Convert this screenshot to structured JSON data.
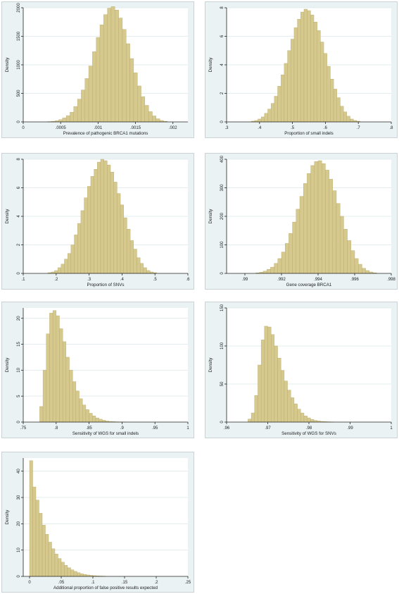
{
  "figure": {
    "bar_color": "#d6c98e",
    "bar_edge_color": "#b8a86a",
    "plot_bg": "#ffffff",
    "panel_bg": "#eaf2f3",
    "grid_color": "#e3ecee"
  },
  "chart_data": [
    {
      "type": "bar",
      "xlabel": "Prevalence of pathogenic BRCA1 mutations",
      "ylabel": "Density",
      "xlim": [
        0,
        0.0022
      ],
      "ylim": [
        0,
        2000
      ],
      "xticks": [
        0,
        0.0005,
        0.001,
        0.0015,
        0.002
      ],
      "xtick_labels": [
        "0",
        ".0005",
        ".001",
        ".0015",
        ".002"
      ],
      "yticks": [
        0,
        500,
        1000,
        1500,
        2000
      ],
      "ytick_labels": [
        "0",
        "500",
        "1000",
        "1500",
        "2000"
      ],
      "bin_width": 5e-05,
      "x": [
        0.00035,
        0.0004,
        0.00045,
        0.0005,
        0.00055,
        0.0006,
        0.00065,
        0.0007,
        0.00075,
        0.0008,
        0.00085,
        0.0009,
        0.00095,
        0.001,
        0.00105,
        0.0011,
        0.00115,
        0.0012,
        0.00125,
        0.0013,
        0.00135,
        0.0014,
        0.00145,
        0.0015,
        0.00155,
        0.0016,
        0.00165,
        0.0017,
        0.00175,
        0.0018,
        0.00185,
        0.0019
      ],
      "values": [
        5,
        10,
        20,
        40,
        70,
        110,
        170,
        270,
        400,
        560,
        760,
        980,
        1230,
        1480,
        1700,
        1880,
        1990,
        2020,
        1960,
        1820,
        1620,
        1370,
        1110,
        860,
        630,
        440,
        290,
        180,
        105,
        55,
        25,
        10
      ]
    },
    {
      "type": "bar",
      "xlabel": "Proportion of small indels",
      "ylabel": "Density",
      "xlim": [
        0.3,
        0.8
      ],
      "ylim": [
        0,
        8
      ],
      "xticks": [
        0.3,
        0.4,
        0.5,
        0.6,
        0.7,
        0.8
      ],
      "xtick_labels": [
        ".3",
        ".4",
        ".5",
        ".6",
        ".7",
        ".8"
      ],
      "yticks": [
        0,
        2,
        4,
        6,
        8
      ],
      "ytick_labels": [
        "0",
        "2",
        "4",
        "6",
        "8"
      ],
      "bin_width": 0.01,
      "x": [
        0.38,
        0.39,
        0.4,
        0.41,
        0.42,
        0.43,
        0.44,
        0.45,
        0.46,
        0.47,
        0.48,
        0.49,
        0.5,
        0.51,
        0.52,
        0.53,
        0.54,
        0.55,
        0.56,
        0.57,
        0.58,
        0.59,
        0.6,
        0.61,
        0.62,
        0.63,
        0.64,
        0.65,
        0.66,
        0.67,
        0.68,
        0.69,
        0.7
      ],
      "values": [
        0.05,
        0.1,
        0.2,
        0.35,
        0.6,
        0.9,
        1.3,
        1.8,
        2.5,
        3.3,
        4.1,
        5.0,
        5.8,
        6.6,
        7.2,
        7.7,
        7.9,
        7.8,
        7.5,
        7.0,
        6.4,
        5.6,
        4.8,
        3.9,
        3.0,
        2.3,
        1.7,
        1.1,
        0.7,
        0.4,
        0.2,
        0.1,
        0.05
      ]
    },
    {
      "type": "bar",
      "xlabel": "Proportion of SNVs",
      "ylabel": "Density",
      "xlim": [
        0.1,
        0.6
      ],
      "ylim": [
        0,
        8
      ],
      "xticks": [
        0.1,
        0.2,
        0.3,
        0.4,
        0.5,
        0.6
      ],
      "xtick_labels": [
        ".1",
        ".2",
        ".3",
        ".4",
        ".5",
        ".6"
      ],
      "yticks": [
        0,
        2,
        4,
        6,
        8
      ],
      "ytick_labels": [
        "0",
        "2",
        "4",
        "6",
        "8"
      ],
      "bin_width": 0.01,
      "x": [
        0.18,
        0.19,
        0.2,
        0.21,
        0.22,
        0.23,
        0.24,
        0.25,
        0.26,
        0.27,
        0.28,
        0.29,
        0.3,
        0.31,
        0.32,
        0.33,
        0.34,
        0.35,
        0.36,
        0.37,
        0.38,
        0.39,
        0.4,
        0.41,
        0.42,
        0.43,
        0.44,
        0.45,
        0.46,
        0.47,
        0.48,
        0.49,
        0.5
      ],
      "values": [
        0.05,
        0.1,
        0.2,
        0.4,
        0.65,
        1.0,
        1.4,
        2.0,
        2.7,
        3.5,
        4.4,
        5.3,
        6.1,
        6.8,
        7.3,
        7.8,
        8.0,
        7.9,
        7.6,
        7.1,
        6.4,
        5.6,
        4.8,
        3.9,
        3.1,
        2.3,
        1.7,
        1.1,
        0.7,
        0.4,
        0.2,
        0.1,
        0.05
      ]
    },
    {
      "type": "bar",
      "xlabel": "Gene coverage BRCA1",
      "ylabel": "Density",
      "xlim": [
        0.989,
        0.998
      ],
      "ylim": [
        0,
        400
      ],
      "xticks": [
        0.99,
        0.992,
        0.994,
        0.996,
        0.998
      ],
      "xtick_labels": [
        ".99",
        ".992",
        ".994",
        ".996",
        ".998"
      ],
      "yticks": [
        0,
        100,
        200,
        300,
        400
      ],
      "ytick_labels": [
        "0",
        "100",
        "200",
        "300",
        "400"
      ],
      "bin_width": 0.0002,
      "x": [
        0.9907,
        0.9909,
        0.9911,
        0.9913,
        0.9915,
        0.9917,
        0.9919,
        0.9921,
        0.9923,
        0.9925,
        0.9927,
        0.9929,
        0.9931,
        0.9933,
        0.9935,
        0.9937,
        0.9939,
        0.9941,
        0.9943,
        0.9945,
        0.9947,
        0.9949,
        0.9951,
        0.9953,
        0.9955,
        0.9957,
        0.9959,
        0.9961,
        0.9963,
        0.9965,
        0.9967,
        0.9969,
        0.9971
      ],
      "values": [
        2,
        4,
        8,
        14,
        22,
        35,
        52,
        75,
        105,
        140,
        180,
        225,
        270,
        315,
        350,
        378,
        392,
        395,
        385,
        362,
        330,
        290,
        245,
        200,
        155,
        115,
        80,
        52,
        32,
        18,
        10,
        5,
        2
      ]
    },
    {
      "type": "bar",
      "xlabel": "Sensitivity of WGS for small indels",
      "ylabel": "Density",
      "xlim": [
        0.75,
        1.0
      ],
      "ylim": [
        0,
        22
      ],
      "xticks": [
        0.75,
        0.8,
        0.85,
        0.9,
        0.95,
        1.0
      ],
      "xtick_labels": [
        ".75",
        ".8",
        ".85",
        ".9",
        ".95",
        "1"
      ],
      "yticks": [
        0,
        5,
        10,
        15,
        20
      ],
      "ytick_labels": [
        "0",
        "5",
        "10",
        "15",
        "20"
      ],
      "bin_width": 0.005,
      "x": [
        0.7775,
        0.7825,
        0.7875,
        0.7925,
        0.7975,
        0.8025,
        0.8075,
        0.8125,
        0.8175,
        0.8225,
        0.8275,
        0.8325,
        0.8375,
        0.8425,
        0.8475,
        0.8525,
        0.8575,
        0.8625,
        0.8675,
        0.8725,
        0.8775,
        0.8825,
        0.8875,
        0.8925,
        0.8975,
        0.9025
      ],
      "values": [
        3,
        10,
        17,
        21,
        21.5,
        20.5,
        18,
        15.5,
        12.5,
        10,
        7.8,
        6,
        4.5,
        3.3,
        2.4,
        1.7,
        1.2,
        0.8,
        0.55,
        0.35,
        0.2,
        0.12,
        0.08,
        0.05,
        0.03,
        0.02
      ]
    },
    {
      "type": "bar",
      "xlabel": "Sensitivity of WGS for SNVs",
      "ylabel": "Density",
      "xlim": [
        0.96,
        1.0
      ],
      "ylim": [
        0,
        150
      ],
      "xticks": [
        0.96,
        0.97,
        0.98,
        0.99,
        1.0
      ],
      "xtick_labels": [
        ".96",
        ".97",
        ".98",
        ".99",
        "1"
      ],
      "yticks": [
        0,
        50,
        100,
        150
      ],
      "ytick_labels": [
        "0",
        "50",
        "100",
        "150"
      ],
      "bin_width": 0.0008,
      "x": [
        0.9656,
        0.9664,
        0.9672,
        0.968,
        0.9688,
        0.9696,
        0.9704,
        0.9712,
        0.972,
        0.9728,
        0.9736,
        0.9744,
        0.9752,
        0.976,
        0.9768,
        0.9776,
        0.9784,
        0.9792,
        0.98,
        0.9808,
        0.9816,
        0.9824,
        0.9832,
        0.984,
        0.9848,
        0.9856
      ],
      "values": [
        4,
        12,
        35,
        75,
        108,
        126,
        125,
        115,
        100,
        84,
        68,
        54,
        42,
        32,
        24,
        17,
        12,
        8,
        5.5,
        3.5,
        2.2,
        1.4,
        0.9,
        0.6,
        0.4,
        0.2
      ]
    },
    {
      "type": "bar",
      "xlabel": "Additional proportion of false positive results expected",
      "ylabel": "Density",
      "xlim": [
        -0.01,
        0.25
      ],
      "ylim": [
        0,
        45
      ],
      "xticks": [
        0,
        0.05,
        0.1,
        0.15,
        0.2,
        0.25
      ],
      "xtick_labels": [
        "0",
        ".05",
        ".1",
        ".15",
        ".2",
        ".25"
      ],
      "yticks": [
        0,
        10,
        20,
        30,
        40
      ],
      "ytick_labels": [
        "0",
        "10",
        "20",
        "30",
        "40"
      ],
      "bin_width": 0.005,
      "x": [
        0.0025,
        0.0075,
        0.0125,
        0.0175,
        0.0225,
        0.0275,
        0.0325,
        0.0375,
        0.0425,
        0.0475,
        0.0525,
        0.0575,
        0.0625,
        0.0675,
        0.0725,
        0.0775,
        0.0825,
        0.0875,
        0.0925,
        0.0975,
        0.1025,
        0.1075,
        0.1125,
        0.1175
      ],
      "values": [
        44,
        34,
        29,
        24,
        19.5,
        16,
        13,
        10.5,
        8.5,
        6.8,
        5.4,
        4.2,
        3.3,
        2.5,
        1.9,
        1.4,
        1.0,
        0.75,
        0.55,
        0.4,
        0.28,
        0.2,
        0.14,
        0.1
      ]
    }
  ]
}
